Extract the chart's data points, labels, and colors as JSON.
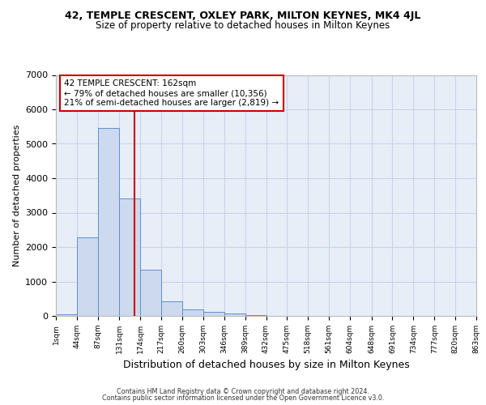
{
  "title1": "42, TEMPLE CRESCENT, OXLEY PARK, MILTON KEYNES, MK4 4JL",
  "title2": "Size of property relative to detached houses in Milton Keynes",
  "xlabel": "Distribution of detached houses by size in Milton Keynes",
  "ylabel": "Number of detached properties",
  "property_size": 162,
  "annotation_title": "42 TEMPLE CRESCENT: 162sqm",
  "annotation_line1": "← 79% of detached houses are smaller (10,356)",
  "annotation_line2": "21% of semi-detached houses are larger (2,819) →",
  "footer1": "Contains HM Land Registry data © Crown copyright and database right 2024.",
  "footer2": "Contains public sector information licensed under the Open Government Licence v3.0.",
  "bin_edges": [
    1,
    44,
    87,
    131,
    174,
    217,
    260,
    303,
    346,
    389,
    432,
    475,
    518,
    561,
    604,
    648,
    691,
    734,
    777,
    820,
    863
  ],
  "bar_heights": [
    50,
    2280,
    5450,
    3420,
    1350,
    430,
    180,
    110,
    60,
    20,
    10,
    5,
    3,
    2,
    1,
    1,
    0,
    0,
    0,
    0
  ],
  "bar_color": "#ccd9ee",
  "bar_edgecolor": "#6090c8",
  "vline_color": "#cc0000",
  "grid_color": "#c8d4e8",
  "bg_color": "#e8eef8",
  "annotation_box_edgecolor": "#cc0000",
  "ylim": [
    0,
    7000
  ],
  "yticks": [
    0,
    1000,
    2000,
    3000,
    4000,
    5000,
    6000,
    7000
  ]
}
